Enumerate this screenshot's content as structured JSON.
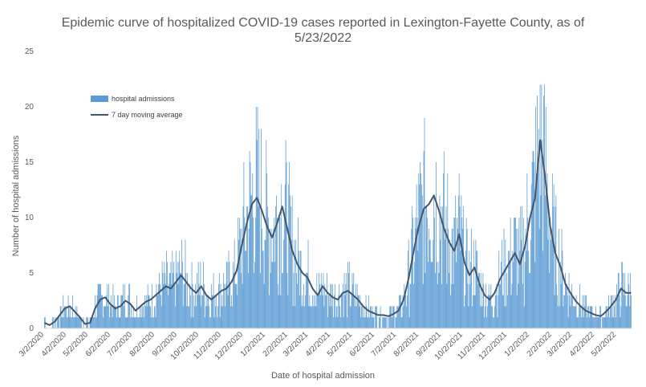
{
  "chart_data": {
    "type": "bar",
    "title": "Epidemic curve of hospitalized COVID-19 cases reported in Lexington-Fayette County, as of",
    "subtitle": "5/23/2022",
    "xlabel": "Date of hospital admission",
    "ylabel": "Number of hospital admissions",
    "ylim": [
      0,
      25
    ],
    "yticks": [
      0,
      5,
      10,
      15,
      20,
      25
    ],
    "x_start": "3/2/2020",
    "x_end": "5/23/2022",
    "x_tick_labels": [
      "3/2/2020",
      "4/2/2020",
      "5/2/2020",
      "6/2/2020",
      "7/2/2020",
      "8/2/2020",
      "9/2/2020",
      "10/2/2020",
      "11/2/2020",
      "12/2/2020",
      "1/2/2021",
      "2/2/2021",
      "3/2/2021",
      "4/2/2021",
      "5/2/2021",
      "6/2/2021",
      "7/2/2021",
      "8/2/2021",
      "9/2/2021",
      "10/2/2021",
      "11/2/2021",
      "12/2/2021",
      "1/2/2022",
      "2/2/2022",
      "3/2/2022",
      "4/2/2022",
      "5/2/2022"
    ],
    "grid": false,
    "legend_position": "top-left",
    "series": [
      {
        "name": "hospital admissions",
        "type": "bar",
        "color": "#5b9bd5",
        "values": "daily counts, see x/y pairs below"
      },
      {
        "name": "7 day moving average",
        "type": "line",
        "color": "#44546a"
      }
    ],
    "admissions_by_week_start": {
      "x": [
        "3/2/2020",
        "3/9/2020",
        "3/16/2020",
        "3/23/2020",
        "3/30/2020",
        "4/6/2020",
        "4/13/2020",
        "4/20/2020",
        "4/27/2020",
        "5/4/2020",
        "5/11/2020",
        "5/18/2020",
        "5/25/2020",
        "6/1/2020",
        "6/8/2020",
        "6/15/2020",
        "6/22/2020",
        "6/29/2020",
        "7/6/2020",
        "7/13/2020",
        "7/20/2020",
        "7/27/2020",
        "8/3/2020",
        "8/10/2020",
        "8/17/2020",
        "8/24/2020",
        "8/31/2020",
        "9/7/2020",
        "9/14/2020",
        "9/21/2020",
        "9/28/2020",
        "10/5/2020",
        "10/12/2020",
        "10/19/2020",
        "10/26/2020",
        "11/2/2020",
        "11/9/2020",
        "11/16/2020",
        "11/23/2020",
        "11/30/2020",
        "12/7/2020",
        "12/14/2020",
        "12/21/2020",
        "12/28/2020",
        "1/4/2021",
        "1/11/2021",
        "1/18/2021",
        "1/25/2021",
        "2/1/2021",
        "2/8/2021",
        "2/15/2021",
        "2/22/2021",
        "3/1/2021",
        "3/8/2021",
        "3/15/2021",
        "3/22/2021",
        "3/29/2021",
        "4/5/2021",
        "4/12/2021",
        "4/19/2021",
        "4/26/2021",
        "5/3/2021",
        "5/10/2021",
        "5/17/2021",
        "5/24/2021",
        "5/31/2021",
        "6/7/2021",
        "6/14/2021",
        "6/21/2021",
        "6/28/2021",
        "7/5/2021",
        "7/12/2021",
        "7/19/2021",
        "7/26/2021",
        "8/2/2021",
        "8/9/2021",
        "8/16/2021",
        "8/23/2021",
        "8/30/2021",
        "9/6/2021",
        "9/13/2021",
        "9/20/2021",
        "9/27/2021",
        "10/4/2021",
        "10/11/2021",
        "10/18/2021",
        "10/25/2021",
        "11/1/2021",
        "11/8/2021",
        "11/15/2021",
        "11/22/2021",
        "11/29/2021",
        "12/6/2021",
        "12/13/2021",
        "12/20/2021",
        "12/27/2021",
        "1/3/2022",
        "1/10/2022",
        "1/17/2022",
        "1/24/2022",
        "1/31/2022",
        "2/7/2022",
        "2/14/2022",
        "2/21/2022",
        "2/28/2022",
        "3/7/2022",
        "3/14/2022",
        "3/21/2022",
        "3/28/2022",
        "4/4/2022",
        "4/11/2022",
        "4/18/2022",
        "4/25/2022",
        "5/2/2022",
        "5/9/2022",
        "5/16/2022"
      ],
      "moving_average": [
        0.5,
        0.3,
        0.6,
        1.2,
        1.8,
        2.0,
        1.5,
        1.0,
        0.4,
        0.5,
        1.8,
        2.6,
        2.8,
        2.2,
        1.8,
        2.0,
        2.5,
        2.2,
        1.6,
        2.0,
        2.4,
        2.6,
        3.0,
        3.4,
        3.8,
        3.6,
        4.2,
        4.8,
        4.2,
        3.6,
        3.2,
        3.8,
        3.0,
        2.6,
        3.0,
        3.4,
        3.6,
        4.2,
        5.2,
        7.5,
        9.5,
        11.2,
        11.8,
        10.6,
        9.2,
        8.2,
        9.5,
        11.0,
        9.0,
        7.0,
        5.8,
        5.0,
        4.6,
        3.6,
        3.0,
        3.8,
        3.2,
        2.8,
        2.6,
        3.2,
        3.4,
        3.0,
        2.6,
        2.0,
        1.6,
        1.4,
        1.2,
        1.2,
        1.1,
        1.3,
        1.6,
        2.6,
        4.5,
        7.0,
        9.2,
        10.8,
        11.2,
        12.0,
        10.6,
        9.0,
        7.8,
        7.0,
        8.5,
        6.0,
        4.8,
        5.5,
        4.0,
        3.0,
        2.6,
        3.2,
        4.4,
        5.2,
        6.0,
        6.8,
        5.8,
        7.4,
        10.0,
        11.8,
        17.0,
        13.6,
        9.2,
        6.8,
        5.6,
        4.0,
        3.2,
        2.5,
        2.0,
        1.6,
        1.4,
        1.2,
        1.1,
        1.5,
        2.0,
        2.6,
        3.6,
        3.2
      ]
    }
  }
}
